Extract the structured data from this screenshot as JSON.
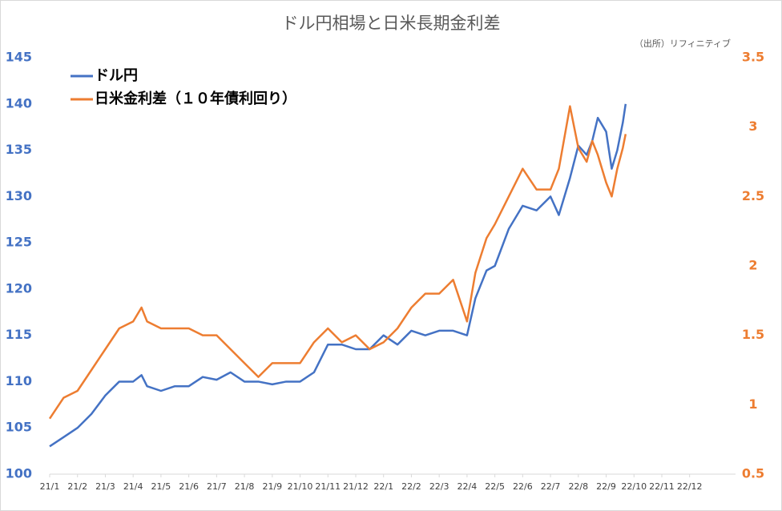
{
  "chart_data": {
    "type": "line",
    "title": "ドル円相場と日米長期金利差",
    "source": "（出所）リフィニティブ",
    "x": [
      0,
      0.5,
      1,
      1.5,
      2,
      2.5,
      3,
      3.3,
      3.5,
      4,
      4.5,
      5,
      5.5,
      6,
      6.5,
      7,
      7.5,
      8,
      8.5,
      9,
      9.5,
      10,
      10.5,
      11,
      11.5,
      12,
      12.5,
      13,
      13.5,
      14,
      14.5,
      15,
      15.3,
      15.7,
      16,
      16.5,
      17,
      17.5,
      18,
      18.3,
      18.7,
      19,
      19.3,
      19.5,
      19.7,
      20,
      20.2,
      20.4,
      20.6,
      20.7
    ],
    "series": [
      {
        "name": "ドル円",
        "color": "#4472c4",
        "axis": "y",
        "values": [
          103,
          104,
          105,
          106.5,
          108.5,
          110,
          110,
          110.7,
          109.5,
          109,
          109.5,
          109.5,
          110.5,
          110.2,
          111,
          110,
          110,
          109.7,
          110,
          110,
          111,
          114,
          114,
          113.5,
          113.5,
          115,
          114,
          115.5,
          115,
          115.5,
          115.5,
          115,
          119,
          122,
          122.5,
          126.5,
          129,
          128.5,
          130,
          128,
          132,
          135.5,
          134.5,
          136,
          138.5,
          137,
          133,
          135,
          138,
          140
        ]
      },
      {
        "name": "日米金利差（１０年債利回り）",
        "color": "#ed7d31",
        "axis": "y2",
        "values": [
          0.9,
          1.05,
          1.1,
          1.25,
          1.4,
          1.55,
          1.6,
          1.7,
          1.6,
          1.55,
          1.55,
          1.55,
          1.5,
          1.5,
          1.4,
          1.3,
          1.2,
          1.3,
          1.3,
          1.3,
          1.45,
          1.55,
          1.45,
          1.5,
          1.4,
          1.45,
          1.55,
          1.7,
          1.8,
          1.8,
          1.9,
          1.6,
          1.95,
          2.2,
          2.3,
          2.5,
          2.7,
          2.55,
          2.55,
          2.7,
          3.15,
          2.85,
          2.75,
          2.9,
          2.8,
          2.6,
          2.5,
          2.7,
          2.85,
          2.95
        ]
      }
    ],
    "xlim": [
      0,
      24.65
    ],
    "xticks": [
      {
        "value": 0,
        "label": "21/1"
      },
      {
        "value": 1,
        "label": "21/2"
      },
      {
        "value": 2,
        "label": "21/3"
      },
      {
        "value": 3,
        "label": "21/4"
      },
      {
        "value": 4,
        "label": "21/5"
      },
      {
        "value": 5,
        "label": "21/6"
      },
      {
        "value": 6,
        "label": "21/7"
      },
      {
        "value": 7,
        "label": "21/8"
      },
      {
        "value": 8,
        "label": "21/9"
      },
      {
        "value": 9,
        "label": "21/10"
      },
      {
        "value": 10,
        "label": "21/11"
      },
      {
        "value": 11,
        "label": "21/12"
      },
      {
        "value": 12,
        "label": "22/1"
      },
      {
        "value": 13,
        "label": "22/2"
      },
      {
        "value": 14,
        "label": "22/3"
      },
      {
        "value": 15,
        "label": "22/4"
      },
      {
        "value": 16,
        "label": "22/5"
      },
      {
        "value": 17,
        "label": "22/6"
      },
      {
        "value": 18,
        "label": "22/7"
      },
      {
        "value": 19,
        "label": "22/8"
      },
      {
        "value": 20,
        "label": "22/9"
      },
      {
        "value": 21,
        "label": "22/10"
      },
      {
        "value": 22,
        "label": "22/11"
      },
      {
        "value": 23,
        "label": "22/12"
      }
    ],
    "ylim": [
      100,
      145
    ],
    "yticks": [
      100,
      105,
      110,
      115,
      120,
      125,
      130,
      135,
      140,
      145
    ],
    "y2lim": [
      0.5,
      3.5
    ],
    "y2ticks": [
      0.5,
      1,
      1.5,
      2,
      2.5,
      3,
      3.5
    ],
    "legend": "upper left"
  }
}
